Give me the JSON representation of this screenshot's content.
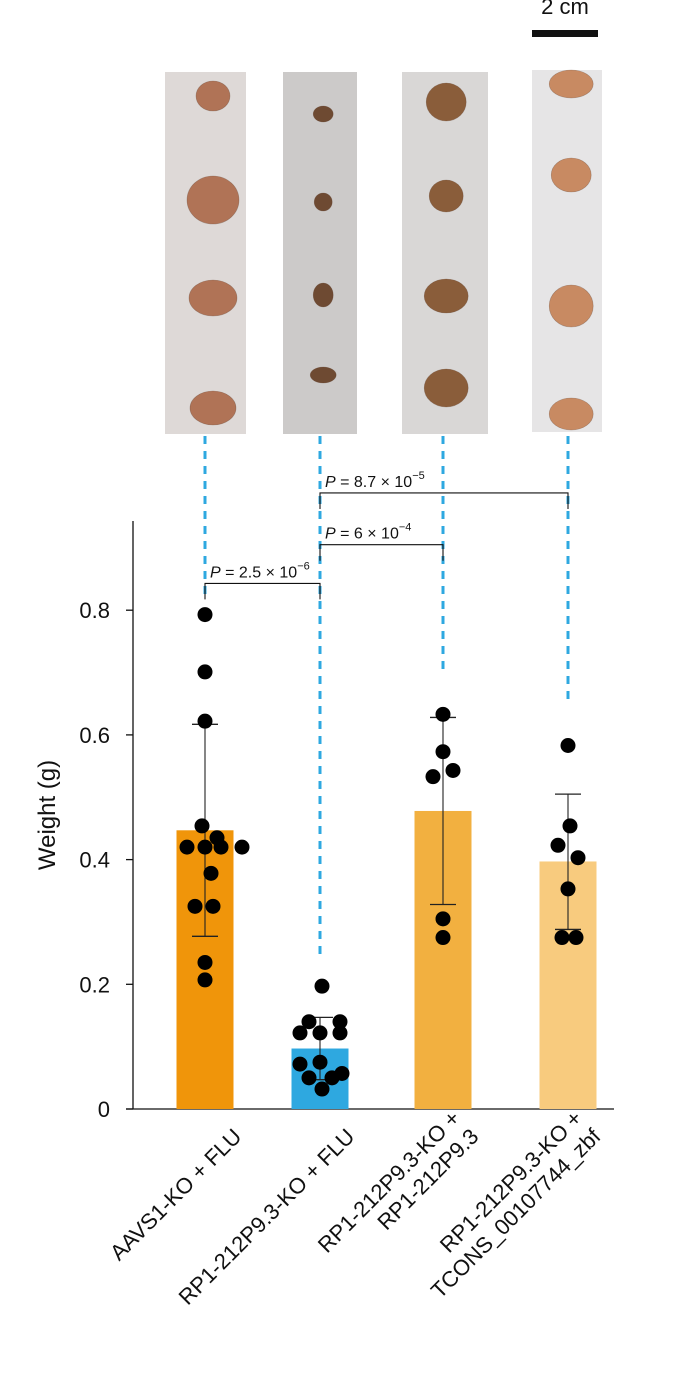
{
  "scale_bar": {
    "label": "2 cm"
  },
  "chart_data": {
    "type": "bar",
    "ylabel": "Weight (g)",
    "ylim": [
      0,
      0.9
    ],
    "yticks": [
      {
        "value": 0,
        "label": "0"
      },
      {
        "value": 0.2,
        "label": "0.2"
      },
      {
        "value": 0.4,
        "label": "0.4"
      },
      {
        "value": 0.6,
        "label": "0.6"
      },
      {
        "value": 0.8,
        "label": "0.8"
      }
    ],
    "categories": [
      [
        "AAVS1-KO + FLU"
      ],
      [
        "RP1-212P9.3-KO + FLU"
      ],
      [
        "RP1-212P9.3-KO +",
        "RP1-212P9.3"
      ],
      [
        "RP1-212P9.3-KO +",
        "TCONS_00107744_zbf"
      ]
    ],
    "bars": [
      {
        "mean": 0.447,
        "sd_low": 0.277,
        "sd_high": 0.617,
        "color": "#F0950A",
        "points": [
          {
            "dx": 0,
            "y": 0.793
          },
          {
            "dx": 0,
            "y": 0.701
          },
          {
            "dx": 0,
            "y": 0.622
          },
          {
            "dx": -3,
            "y": 0.454
          },
          {
            "dx": 12,
            "y": 0.435
          },
          {
            "dx": -18,
            "y": 0.42
          },
          {
            "dx": 0,
            "y": 0.42
          },
          {
            "dx": 16,
            "y": 0.42
          },
          {
            "dx": 37,
            "y": 0.42
          },
          {
            "dx": 6,
            "y": 0.378
          },
          {
            "dx": -10,
            "y": 0.325
          },
          {
            "dx": 8,
            "y": 0.325
          },
          {
            "dx": 0,
            "y": 0.235
          },
          {
            "dx": 0,
            "y": 0.207
          }
        ]
      },
      {
        "mean": 0.097,
        "sd_low": 0.047,
        "sd_high": 0.147,
        "color": "#2EA8E0",
        "points": [
          {
            "dx": 2,
            "y": 0.197
          },
          {
            "dx": -11,
            "y": 0.14
          },
          {
            "dx": 20,
            "y": 0.14
          },
          {
            "dx": -20,
            "y": 0.122
          },
          {
            "dx": 0,
            "y": 0.122
          },
          {
            "dx": 20,
            "y": 0.122
          },
          {
            "dx": -20,
            "y": 0.072
          },
          {
            "dx": 0,
            "y": 0.075
          },
          {
            "dx": 22,
            "y": 0.057
          },
          {
            "dx": -11,
            "y": 0.05
          },
          {
            "dx": 12,
            "y": 0.05
          },
          {
            "dx": 2,
            "y": 0.032
          }
        ]
      },
      {
        "mean": 0.478,
        "sd_low": 0.328,
        "sd_high": 0.628,
        "color": "#F2B040",
        "points": [
          {
            "dx": 0,
            "y": 0.633
          },
          {
            "dx": 0,
            "y": 0.573
          },
          {
            "dx": -10,
            "y": 0.533
          },
          {
            "dx": 10,
            "y": 0.543
          },
          {
            "dx": 0,
            "y": 0.305
          },
          {
            "dx": 0,
            "y": 0.275
          }
        ]
      },
      {
        "mean": 0.397,
        "sd_low": 0.288,
        "sd_high": 0.505,
        "color": "#F8CB7E",
        "points": [
          {
            "dx": 0,
            "y": 0.583
          },
          {
            "dx": 2,
            "y": 0.454
          },
          {
            "dx": -10,
            "y": 0.423
          },
          {
            "dx": 10,
            "y": 0.403
          },
          {
            "dx": 0,
            "y": 0.353
          },
          {
            "dx": -6,
            "y": 0.275
          },
          {
            "dx": 8,
            "y": 0.275
          }
        ]
      }
    ],
    "comparisons": [
      {
        "from": 0,
        "to": 1,
        "y": 0.843,
        "prefix": "P = 2.5 × 10",
        "exponent": "−6"
      },
      {
        "from": 1,
        "to": 2,
        "y": 0.905,
        "prefix": "P = 6 × 10",
        "exponent": "−4"
      },
      {
        "from": 1,
        "to": 3,
        "y": 0.988,
        "prefix": "P = 8.7 × 10",
        "exponent": "−5"
      }
    ]
  },
  "photo_panels": [
    {
      "tumors": [
        {
          "y": 96,
          "w": 34,
          "h": 30
        },
        {
          "y": 200,
          "w": 52,
          "h": 48
        },
        {
          "y": 298,
          "w": 48,
          "h": 36
        },
        {
          "y": 408,
          "w": 46,
          "h": 34
        }
      ],
      "bg": "#ded9d7",
      "tumor": "#b07356"
    },
    {
      "tumors": [
        {
          "y": 114,
          "w": 20,
          "h": 16
        },
        {
          "y": 202,
          "w": 18,
          "h": 18
        },
        {
          "y": 295,
          "w": 20,
          "h": 24
        },
        {
          "y": 375,
          "w": 26,
          "h": 16
        }
      ],
      "bg": "#cccac9",
      "tumor": "#6e4a32"
    },
    {
      "tumors": [
        {
          "y": 102,
          "w": 40,
          "h": 38
        },
        {
          "y": 196,
          "w": 34,
          "h": 32
        },
        {
          "y": 296,
          "w": 44,
          "h": 34
        },
        {
          "y": 388,
          "w": 44,
          "h": 38
        }
      ],
      "bg": "#d9d7d6",
      "tumor": "#8a5d3a"
    },
    {
      "tumors": [
        {
          "y": 84,
          "w": 44,
          "h": 28
        },
        {
          "y": 175,
          "w": 40,
          "h": 34
        },
        {
          "y": 306,
          "w": 44,
          "h": 42
        },
        {
          "y": 414,
          "w": 44,
          "h": 32
        }
      ],
      "bg": "#e6e5e6",
      "tumor": "#c88a62"
    }
  ]
}
